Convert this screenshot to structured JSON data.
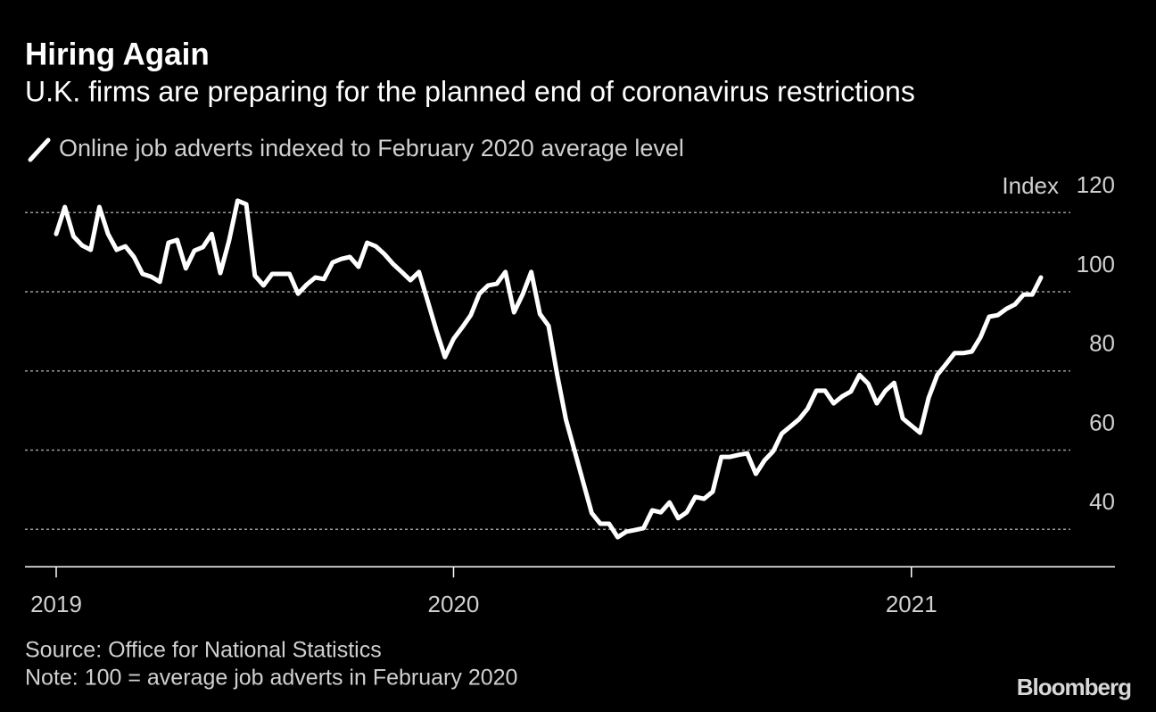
{
  "chart_data": {
    "type": "line",
    "title": "Hiring Again",
    "subtitle": "U.K. firms are preparing for the planned end of coronavirus restrictions",
    "y_label": "Index",
    "source": "Source: Office for National Statistics",
    "note": "Note: 100 = average job adverts in February 2020",
    "brand": "Bloomberg",
    "categories": [
      "2019",
      null,
      null,
      null,
      null,
      null,
      null,
      null,
      null,
      null,
      null,
      null,
      null,
      null,
      null,
      null,
      null,
      null,
      null,
      null,
      null,
      null,
      null,
      null,
      null,
      null,
      null,
      null,
      null,
      null,
      null,
      null,
      null,
      null,
      null,
      null,
      null,
      null,
      null,
      null,
      null,
      null,
      null,
      null,
      null,
      null,
      "2020",
      null,
      null,
      null,
      null,
      null,
      null,
      null,
      null,
      null,
      null,
      null,
      null,
      null,
      null,
      null,
      null,
      null,
      null,
      null,
      null,
      null,
      null,
      null,
      null,
      null,
      null,
      null,
      null,
      null,
      null,
      null,
      null,
      null,
      null,
      null,
      null,
      null,
      null,
      null,
      null,
      null,
      null,
      null,
      null,
      null,
      null,
      null,
      null,
      null,
      null,
      null,
      null,
      "2021",
      null,
      null,
      null,
      null,
      null,
      null,
      null,
      null,
      null,
      null,
      null,
      null,
      null,
      null,
      null
    ],
    "series": [
      {
        "name": "Online job adverts indexed to February 2020 average level",
        "color": "#ffffff",
        "values": [
          114.6,
          121.4,
          114.0,
          111.7,
          110.6,
          121.4,
          114.6,
          110.6,
          111.5,
          108.8,
          104.5,
          103.8,
          102.5,
          112.4,
          113.1,
          105.9,
          110.4,
          111.3,
          114.6,
          104.7,
          112.8,
          123.0,
          122.1,
          104.1,
          101.6,
          104.5,
          104.5,
          104.5,
          99.5,
          101.8,
          103.6,
          103.2,
          107.4,
          108.3,
          108.8,
          106.3,
          112.4,
          111.5,
          109.5,
          107.0,
          105.0,
          102.9,
          105.0,
          97.7,
          90.3,
          83.5,
          88.1,
          91.0,
          94.1,
          99.5,
          101.6,
          102.0,
          105.0,
          94.8,
          99.3,
          105.0,
          94.4,
          91.4,
          79.0,
          67.8,
          59.9,
          52.0,
          44.1,
          41.4,
          41.4,
          38.0,
          39.4,
          39.8,
          40.3,
          44.8,
          44.3,
          46.8,
          42.8,
          44.3,
          48.2,
          47.7,
          49.5,
          58.3,
          58.3,
          58.8,
          59.2,
          54.0,
          57.4,
          59.7,
          64.2,
          66.0,
          67.8,
          70.5,
          75.0,
          75.0,
          71.8,
          73.6,
          74.8,
          79.0,
          76.8,
          71.8,
          75.0,
          77.0,
          68.0,
          66.2,
          64.4,
          73.2,
          79.0,
          81.7,
          84.5,
          84.5,
          84.9,
          88.5,
          93.7,
          94.1,
          95.7,
          96.8,
          99.3,
          99.3,
          103.6
        ]
      }
    ],
    "ylim": [
      31,
      128
    ],
    "yticks": [
      40,
      60,
      80,
      100,
      120
    ],
    "grid": true
  }
}
